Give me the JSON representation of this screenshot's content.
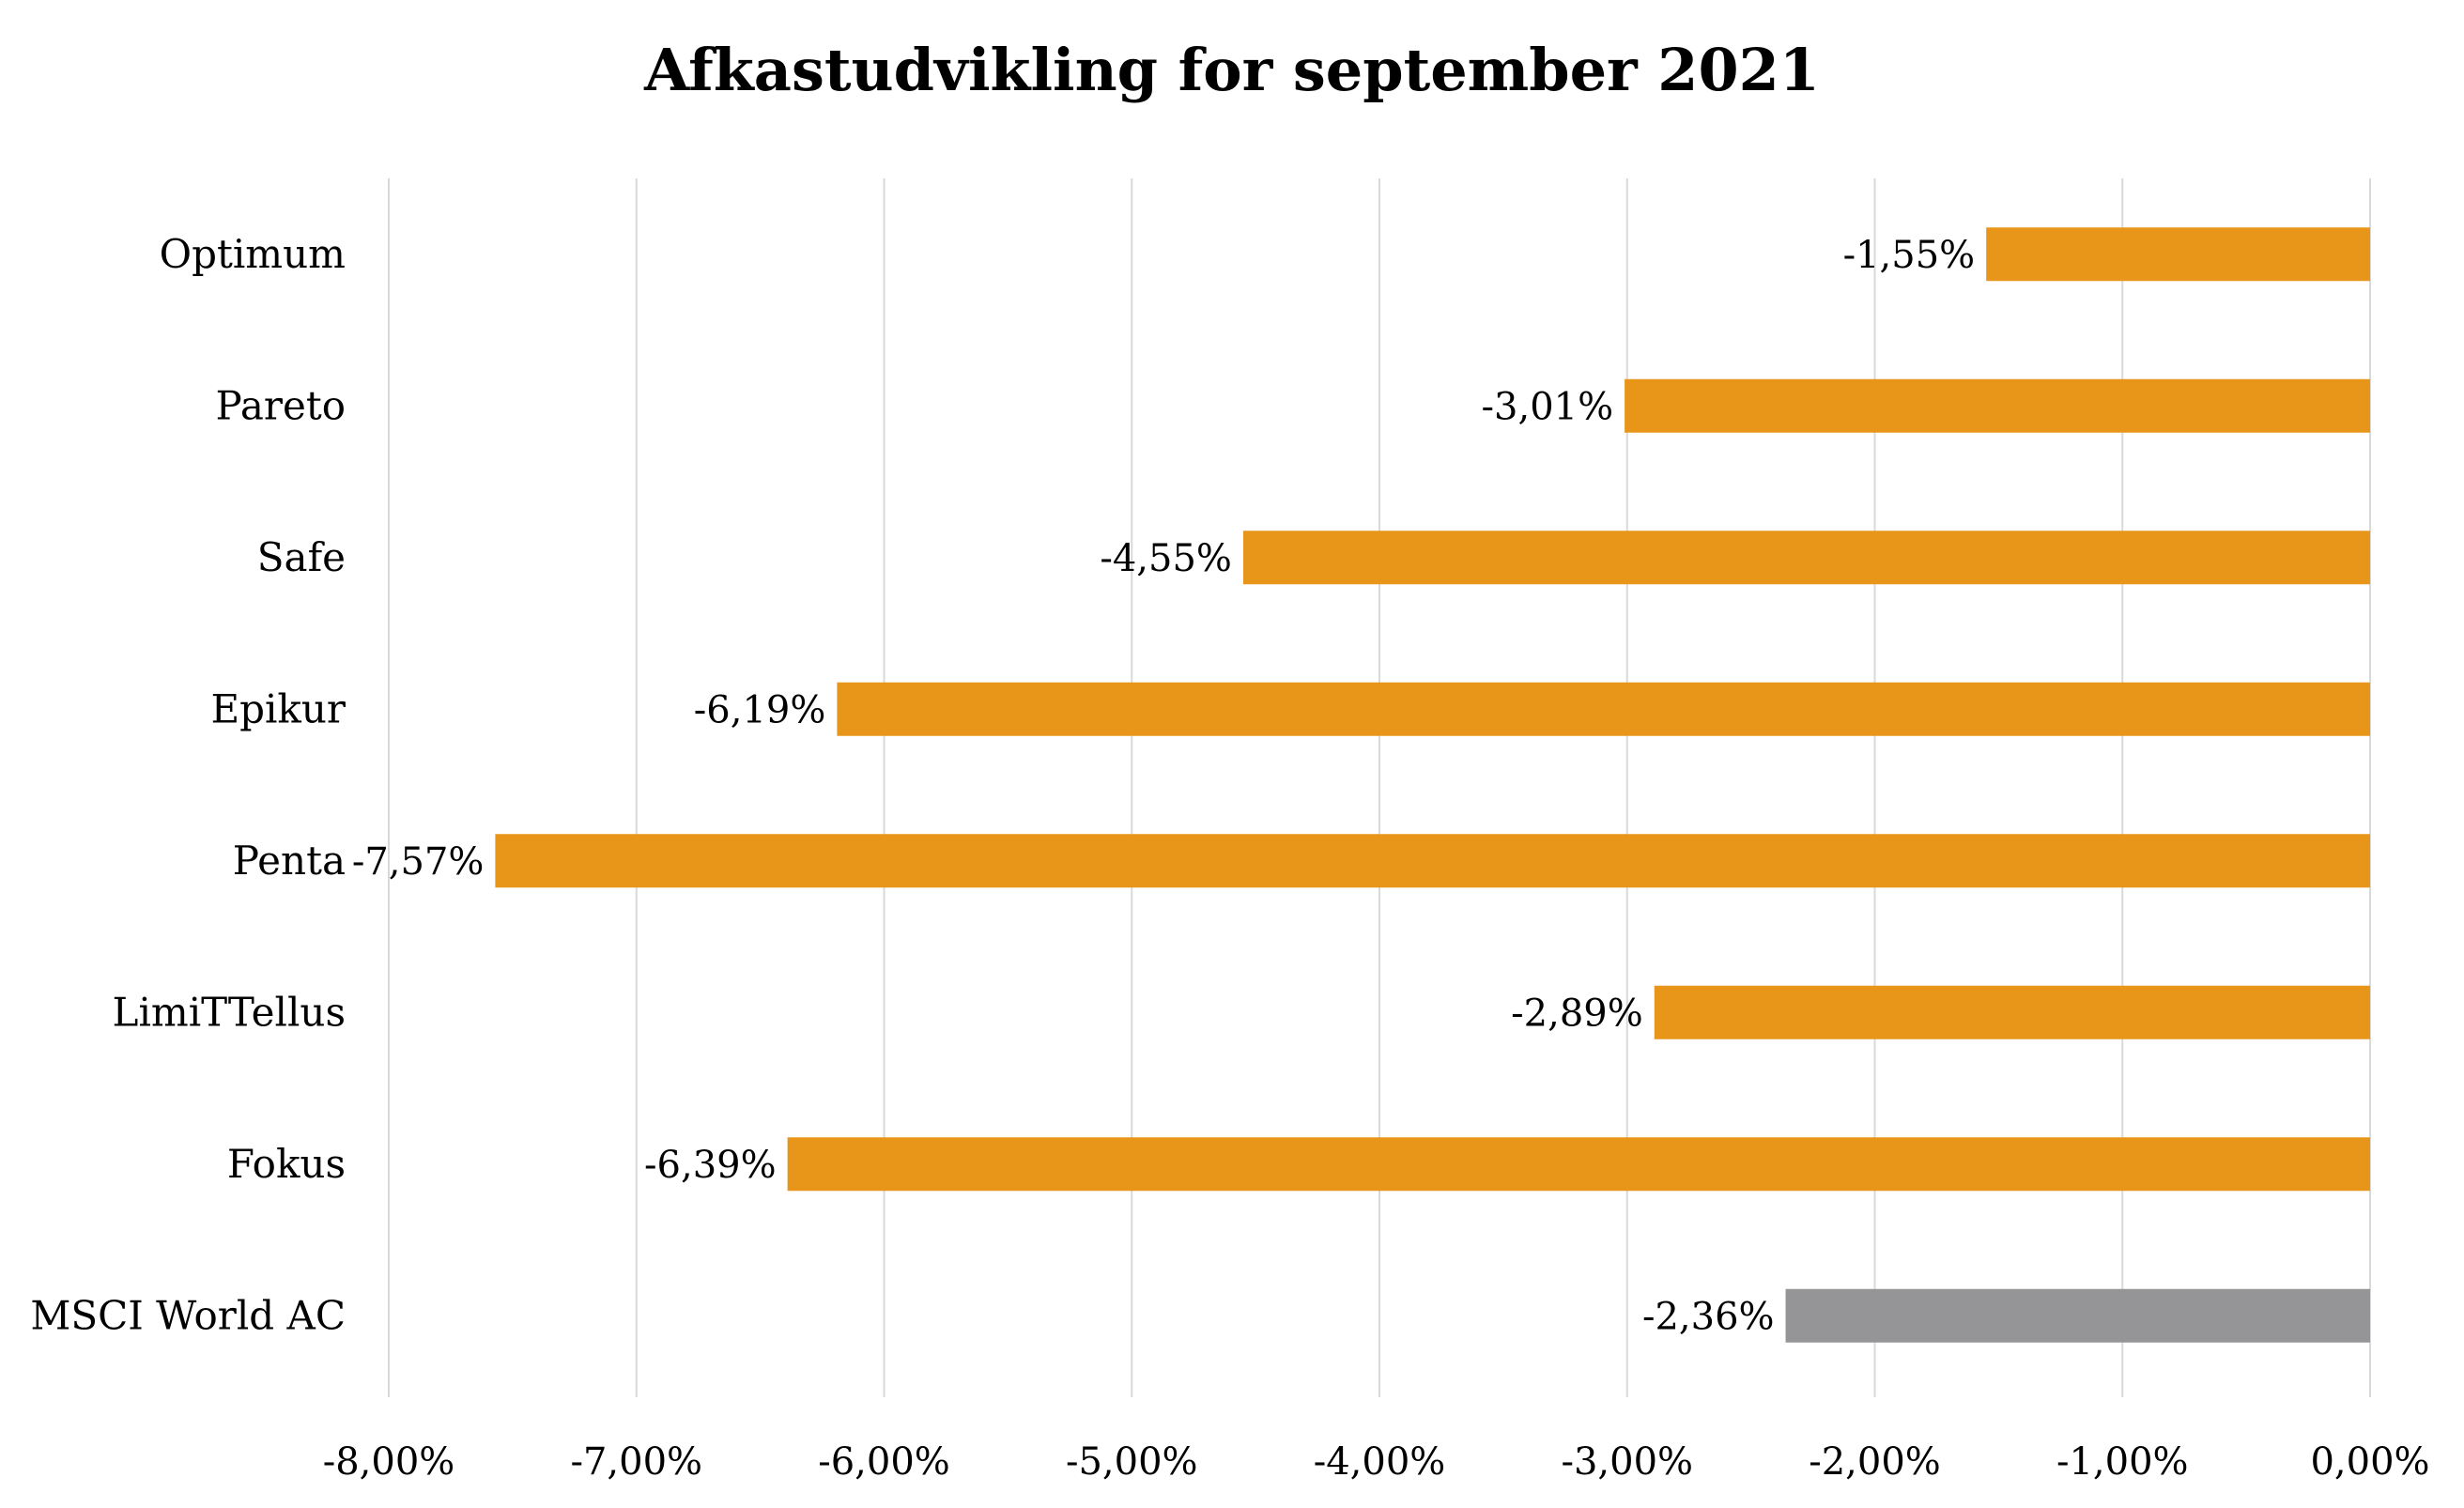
{
  "chart_data": {
    "type": "bar",
    "orientation": "horizontal",
    "title": "Afkastudvikling for september 2021",
    "xlabel": "",
    "ylabel": "",
    "categories": [
      "Optimum",
      "Pareto",
      "Safe",
      "Epikur",
      "Penta",
      "LimiTTellus",
      "Fokus",
      "MSCI World AC"
    ],
    "values": [
      -1.55,
      -3.01,
      -4.55,
      -6.19,
      -7.57,
      -2.89,
      -6.39,
      -2.36
    ],
    "data_labels": [
      "-1,55%",
      "-3,01%",
      "-4,55%",
      "-6,19%",
      "-7,57%",
      "-2,89%",
      "-6,39%",
      "-2,36%"
    ],
    "bar_colors": [
      "#E8961A",
      "#E8961A",
      "#E8961A",
      "#E8961A",
      "#E8961A",
      "#E8961A",
      "#E8961A",
      "#959598"
    ],
    "xlim": [
      -8,
      0
    ],
    "x_ticks": [
      -8,
      -7,
      -6,
      -5,
      -4,
      -3,
      -2,
      -1,
      0
    ],
    "x_tick_labels": [
      "-8,00%",
      "-7,00%",
      "-6,00%",
      "-5,00%",
      "-4,00%",
      "-3,00%",
      "-2,00%",
      "-1,00%",
      "0,00%"
    ],
    "grid": "vertical",
    "legend": "none",
    "gridline_color": "#D9D9D9"
  }
}
